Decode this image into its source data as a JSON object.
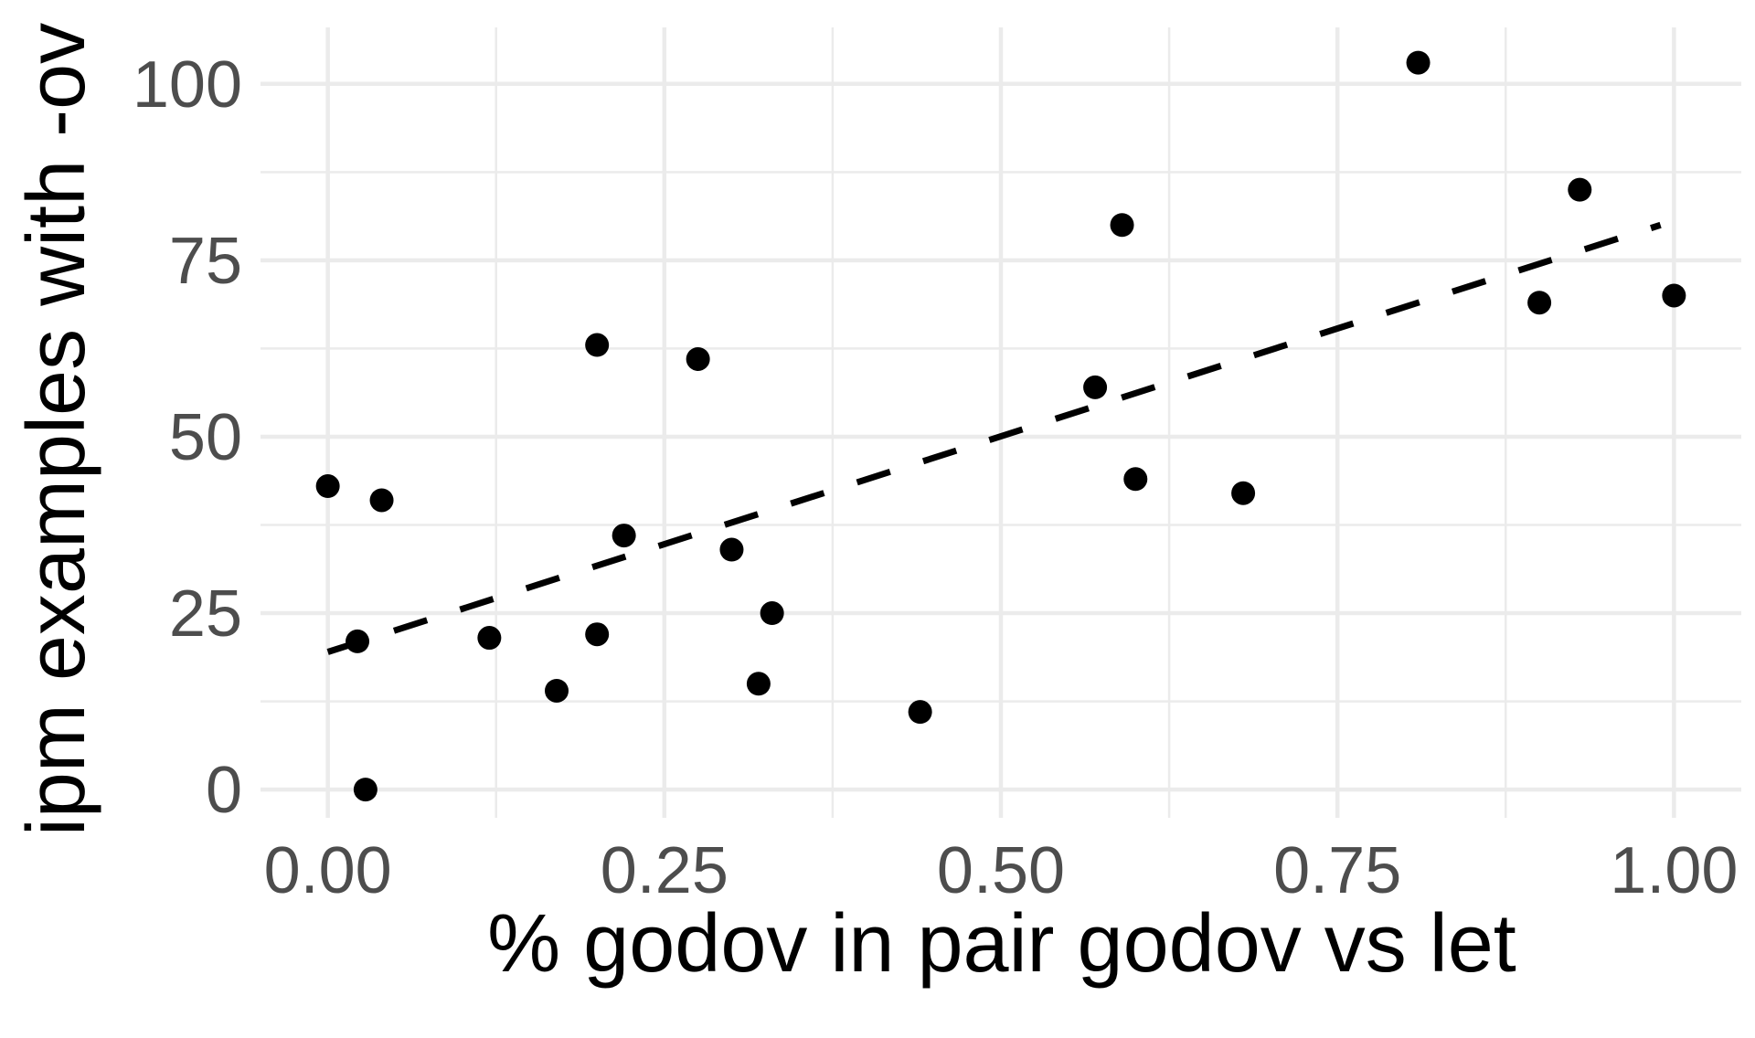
{
  "chart_data": {
    "type": "scatter",
    "xlabel": "% godov in pair godov vs let",
    "ylabel": "ipm examples with -ov",
    "xlim": [
      -0.05,
      1.05
    ],
    "ylim": [
      -4,
      108
    ],
    "x_ticks": [
      0.0,
      0.25,
      0.5,
      0.75,
      1.0
    ],
    "x_tick_labels": [
      "0.00",
      "0.25",
      "0.50",
      "0.75",
      "1.00"
    ],
    "x_minor_ticks": [
      0.125,
      0.375,
      0.625,
      0.875
    ],
    "y_ticks": [
      0,
      25,
      50,
      75,
      100
    ],
    "y_tick_labels": [
      "0",
      "25",
      "50",
      "75",
      "100"
    ],
    "y_minor_ticks": [
      12.5,
      37.5,
      62.5,
      87.5
    ],
    "grid": true,
    "legend": "none",
    "points": [
      {
        "x": 0.0,
        "y": 43
      },
      {
        "x": 0.022,
        "y": 21
      },
      {
        "x": 0.028,
        "y": 0
      },
      {
        "x": 0.04,
        "y": 41
      },
      {
        "x": 0.12,
        "y": 21.5
      },
      {
        "x": 0.17,
        "y": 14
      },
      {
        "x": 0.2,
        "y": 63
      },
      {
        "x": 0.2,
        "y": 22
      },
      {
        "x": 0.22,
        "y": 36
      },
      {
        "x": 0.275,
        "y": 61
      },
      {
        "x": 0.3,
        "y": 34
      },
      {
        "x": 0.32,
        "y": 15
      },
      {
        "x": 0.33,
        "y": 25
      },
      {
        "x": 0.44,
        "y": 11
      },
      {
        "x": 0.57,
        "y": 57
      },
      {
        "x": 0.59,
        "y": 80
      },
      {
        "x": 0.6,
        "y": 44
      },
      {
        "x": 0.68,
        "y": 42
      },
      {
        "x": 0.81,
        "y": 103
      },
      {
        "x": 0.9,
        "y": 69
      },
      {
        "x": 0.93,
        "y": 85
      },
      {
        "x": 1.0,
        "y": 70
      }
    ],
    "trend_line": {
      "style": "dashed",
      "color": "#000000",
      "from": {
        "x": 0.0,
        "y": 19.5
      },
      "to": {
        "x": 0.99,
        "y": 80
      }
    }
  }
}
